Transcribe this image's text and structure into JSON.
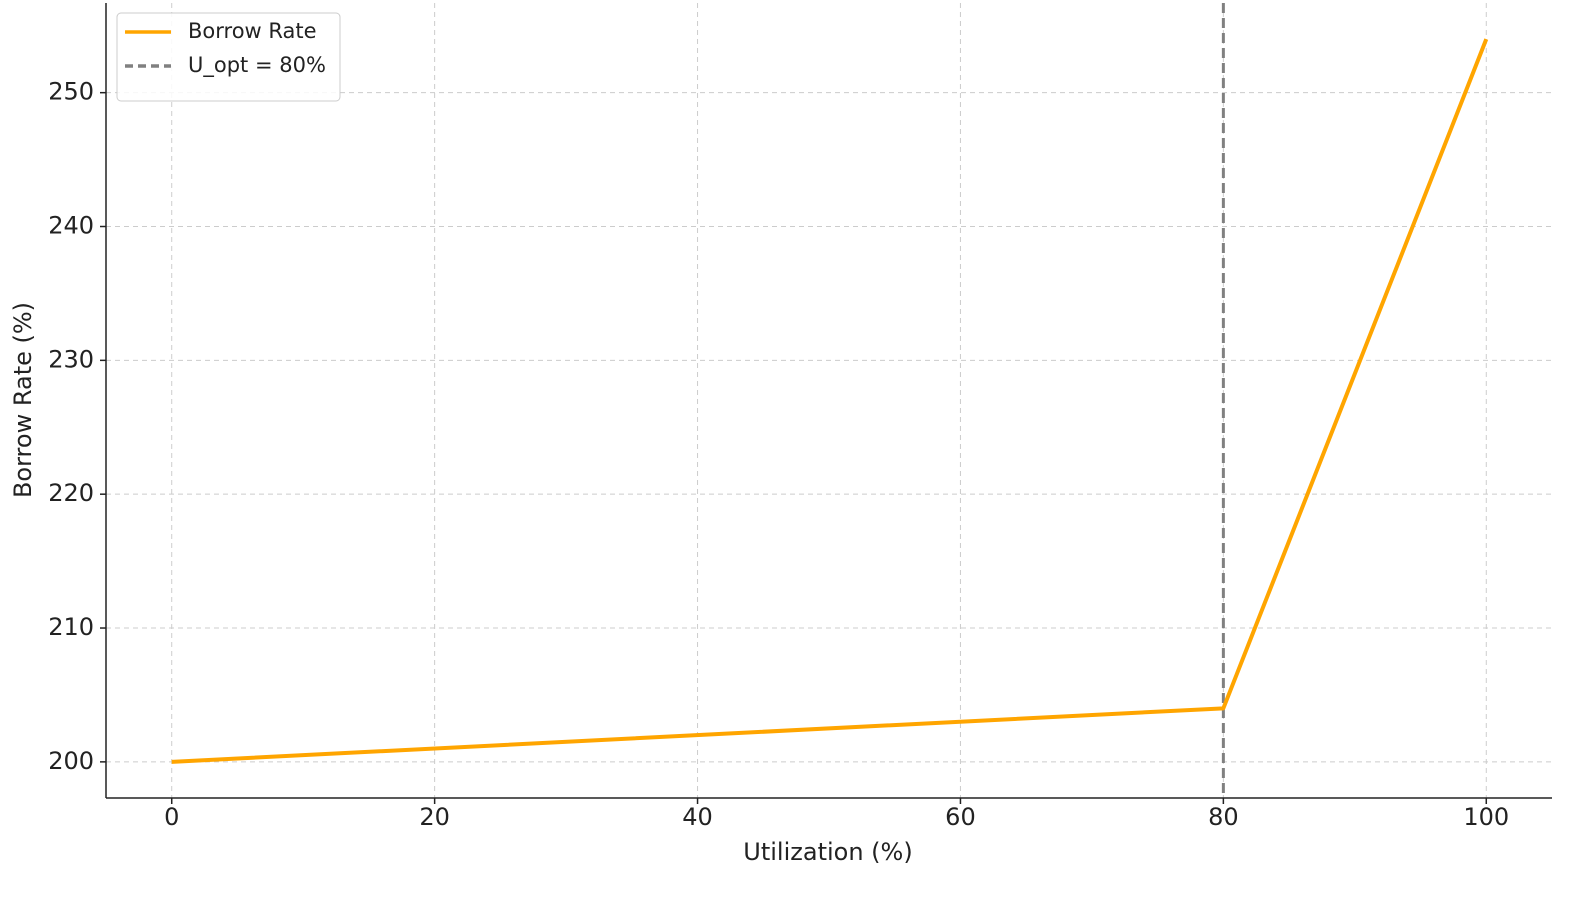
{
  "chart_data": {
    "type": "line",
    "x_label": "Utilization (%)",
    "y_label": "Borrow Rate (%)",
    "x": [
      0,
      80,
      100
    ],
    "series": [
      {
        "name": "Borrow Rate",
        "color": "#ffa500",
        "values": [
          200,
          204,
          254
        ]
      }
    ],
    "vline": {
      "name": "U_opt = 80%",
      "x": 80,
      "color": "#808080",
      "style": "dashed"
    },
    "xlim": [
      -5,
      105
    ],
    "xticks": [
      0,
      20,
      40,
      60,
      80,
      100
    ],
    "ylim": [
      197.3,
      256.7
    ],
    "yticks": [
      200,
      210,
      220,
      230,
      240,
      250
    ],
    "grid": true,
    "legend": "upper-left"
  }
}
